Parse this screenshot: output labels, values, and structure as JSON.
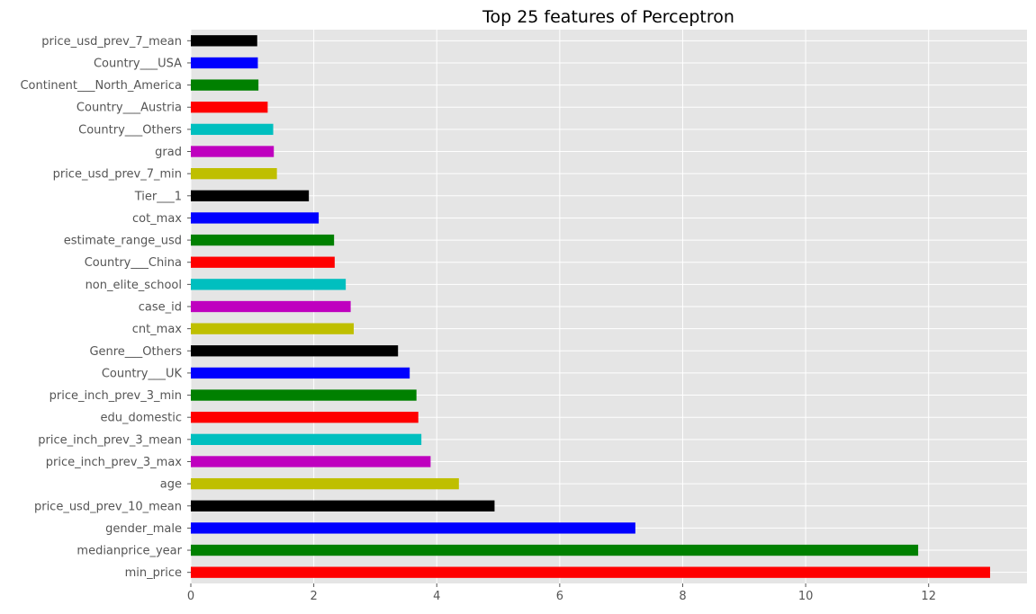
{
  "chart_data": {
    "type": "bar",
    "orientation": "horizontal",
    "title": "Top 25 features of Perceptron",
    "xlabel": "",
    "ylabel": "",
    "xlim": [
      0,
      13.6
    ],
    "xticks": [
      0,
      2,
      4,
      6,
      8,
      10,
      12
    ],
    "grid": true,
    "background": "#e5e5e5",
    "grid_color": "#ffffff",
    "categories": [
      "min_price",
      "medianprice_year",
      "gender_male",
      "price_usd_prev_10_mean",
      "age",
      "price_inch_prev_3_max",
      "price_inch_prev_3_mean",
      "edu_domestic",
      "price_inch_prev_3_min",
      "Country___UK",
      "Genre___Others",
      "cnt_max",
      "case_id",
      "non_elite_school",
      "Country___China",
      "estimate_range_usd",
      "cot_max",
      "Tier___1",
      "price_usd_prev_7_min",
      "grad",
      "Country___Others",
      "Country___Austria",
      "Continent___North_America",
      "Country___USA",
      "price_usd_prev_7_mean"
    ],
    "values": [
      13.0,
      11.83,
      7.23,
      4.94,
      4.36,
      3.9,
      3.75,
      3.7,
      3.67,
      3.56,
      3.37,
      2.65,
      2.6,
      2.52,
      2.34,
      2.33,
      2.08,
      1.92,
      1.4,
      1.35,
      1.34,
      1.25,
      1.1,
      1.09,
      1.08
    ],
    "colors": [
      "#ff0000",
      "#008000",
      "#0000ff",
      "#000000",
      "#bfbf00",
      "#bf00bf",
      "#00bfbf",
      "#ff0000",
      "#008000",
      "#0000ff",
      "#000000",
      "#bfbf00",
      "#bf00bf",
      "#00bfbf",
      "#ff0000",
      "#008000",
      "#0000ff",
      "#000000",
      "#bfbf00",
      "#bf00bf",
      "#00bfbf",
      "#ff0000",
      "#008000",
      "#0000ff",
      "#000000"
    ]
  }
}
